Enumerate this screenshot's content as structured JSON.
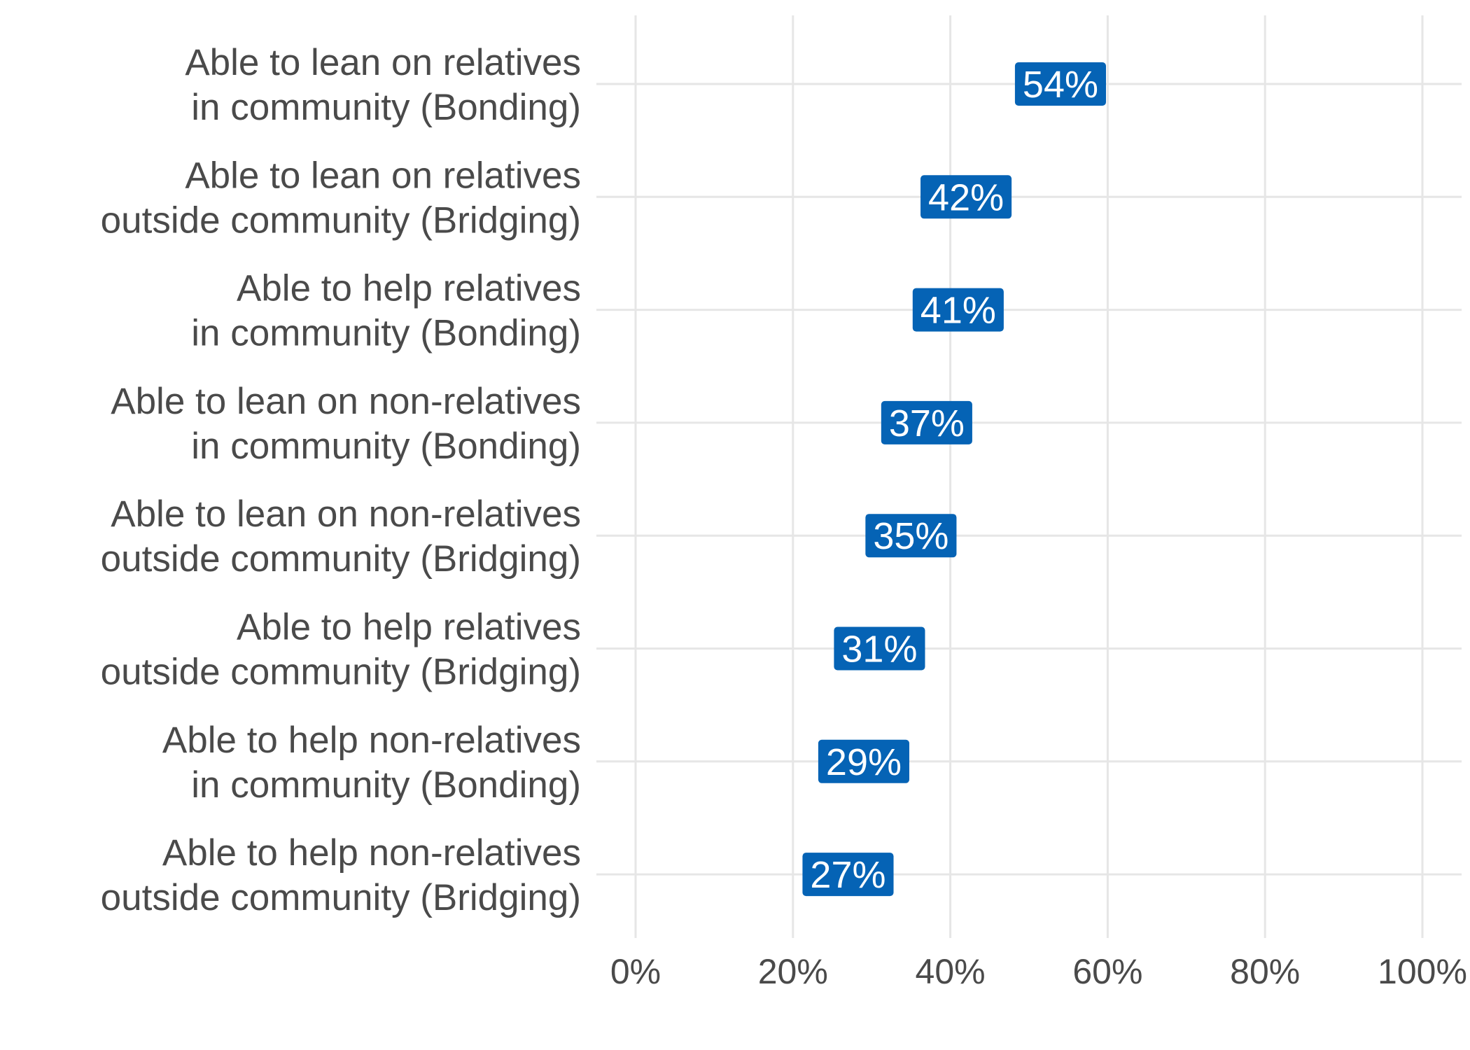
{
  "chart_data": {
    "type": "dot",
    "categories": [
      [
        "Able to lean on relatives",
        "in community (Bonding)"
      ],
      [
        "Able to lean on relatives",
        "outside community (Bridging)"
      ],
      [
        "Able to help relatives",
        "in community (Bonding)"
      ],
      [
        "Able to lean on non-relatives",
        "in community (Bonding)"
      ],
      [
        "Able to lean on non-relatives",
        "outside community (Bridging)"
      ],
      [
        "Able to help relatives",
        "outside community (Bridging)"
      ],
      [
        "Able to help non-relatives",
        "in community (Bonding)"
      ],
      [
        "Able to help non-relatives",
        "outside community (Bridging)"
      ]
    ],
    "values": [
      54,
      42,
      41,
      37,
      35,
      31,
      29,
      27
    ],
    "value_labels": [
      "54%",
      "42%",
      "41%",
      "37%",
      "35%",
      "31%",
      "29%",
      "27%"
    ],
    "xlim": [
      0,
      100
    ],
    "x_ticks": [
      0,
      20,
      40,
      60,
      80,
      100
    ],
    "x_tick_labels": [
      "0%",
      "20%",
      "40%",
      "60%",
      "80%",
      "100%"
    ],
    "title": "",
    "xlabel": "",
    "ylabel": "",
    "grid": true,
    "label_color": "#0563B5",
    "text_color": "#4a4a4a",
    "grid_color": "#e6e6e6"
  }
}
